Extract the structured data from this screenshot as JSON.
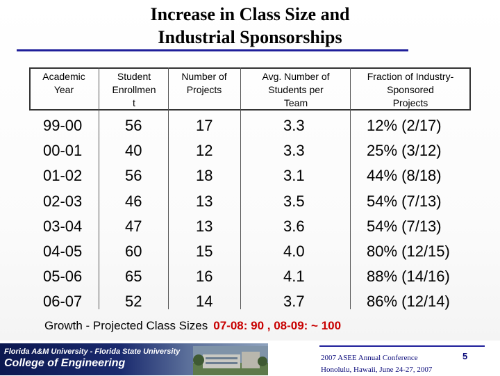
{
  "title_line1": "Increase in Class Size and",
  "title_line2": "Industrial Sponsorships",
  "table": {
    "headers": [
      [
        "Academic",
        "Year",
        ""
      ],
      [
        "Student",
        "Enrollmen",
        "t"
      ],
      [
        "Number of",
        "Projects",
        ""
      ],
      [
        "Avg. Number of",
        "Students per",
        "Team"
      ],
      [
        "Fraction of Industry-",
        "Sponsored",
        "Projects"
      ]
    ],
    "rows": [
      [
        "99-00",
        "56",
        "17",
        "3.3",
        "12% (2/17)"
      ],
      [
        "00-01",
        "40",
        "12",
        "3.3",
        "25% (3/12)"
      ],
      [
        "01-02",
        "56",
        "18",
        "3.1",
        "44% (8/18)"
      ],
      [
        "02-03",
        "46",
        "13",
        "3.5",
        "54% (7/13)"
      ],
      [
        "03-04",
        "47",
        "13",
        "3.6",
        "54% (7/13)"
      ],
      [
        "04-05",
        "60",
        "15",
        "4.0",
        "80% (12/15)"
      ],
      [
        "05-06",
        "65",
        "16",
        "4.1",
        "88% (14/16)"
      ],
      [
        "06-07",
        "52",
        "14",
        "3.7",
        "86% (12/14)"
      ]
    ]
  },
  "footnote_label": "Growth - Projected Class Sizes",
  "footnote_projection": "07-08: 90 ,  08-09: ~ 100",
  "footer": {
    "university": "Florida A&M University - Florida State University",
    "college": "College of Engineering",
    "conference_line1": "2007 ASEE Annual Conference",
    "conference_line2": "Honolulu, Hawaii, June 24-27, 2007",
    "page_number": "5"
  },
  "colors": {
    "title_rule": "#1f1f9a",
    "projection_text": "#c80000",
    "footer_text": "#0a0a7a"
  }
}
